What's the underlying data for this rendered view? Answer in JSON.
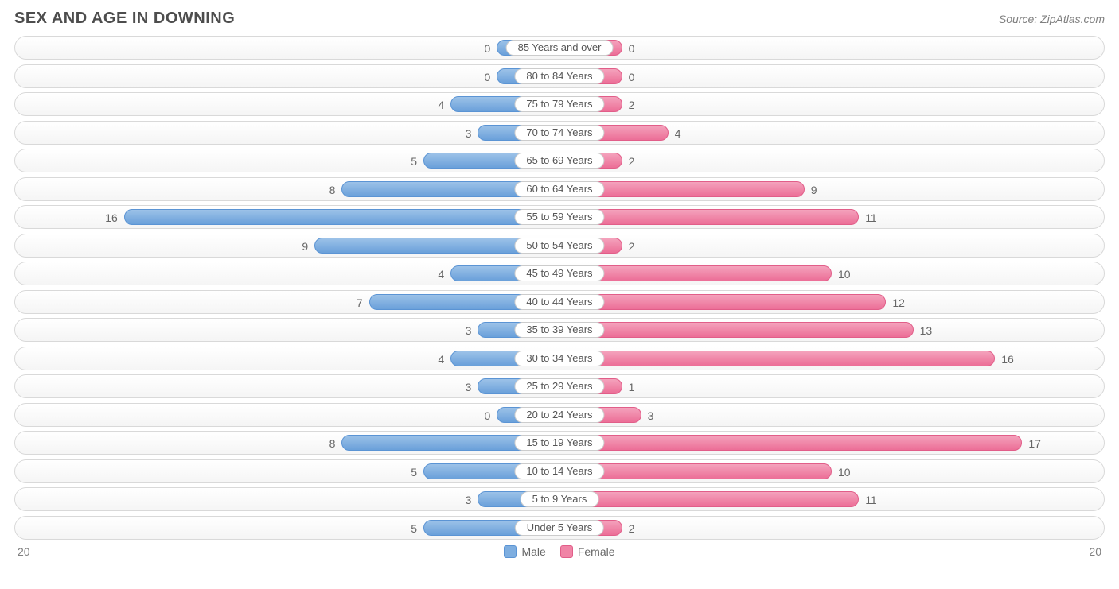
{
  "title": "SEX AND AGE IN DOWNING",
  "source": "Source: ZipAtlas.com",
  "chart": {
    "type": "population-pyramid",
    "axis_max": 20,
    "axis_label_left": "20",
    "axis_label_right": "20",
    "min_bar_units": 2.3,
    "series": {
      "male": {
        "label": "Male",
        "fill": "#7eaee0",
        "border": "#5b94d4",
        "grad_top": "#9cc2e8",
        "grad_bot": "#6aa0da"
      },
      "female": {
        "label": "Female",
        "fill": "#f084a6",
        "border": "#e15e89",
        "grad_top": "#f4a2bc",
        "grad_bot": "#ec6e97"
      }
    },
    "label_color": "#666666",
    "track_border": "#d9d9d9",
    "pill_border": "#cccccc",
    "rows": [
      {
        "category": "85 Years and over",
        "male": 0,
        "female": 0
      },
      {
        "category": "80 to 84 Years",
        "male": 0,
        "female": 0
      },
      {
        "category": "75 to 79 Years",
        "male": 4,
        "female": 2
      },
      {
        "category": "70 to 74 Years",
        "male": 3,
        "female": 4
      },
      {
        "category": "65 to 69 Years",
        "male": 5,
        "female": 2
      },
      {
        "category": "60 to 64 Years",
        "male": 8,
        "female": 9
      },
      {
        "category": "55 to 59 Years",
        "male": 16,
        "female": 11
      },
      {
        "category": "50 to 54 Years",
        "male": 9,
        "female": 2
      },
      {
        "category": "45 to 49 Years",
        "male": 4,
        "female": 10
      },
      {
        "category": "40 to 44 Years",
        "male": 7,
        "female": 12
      },
      {
        "category": "35 to 39 Years",
        "male": 3,
        "female": 13
      },
      {
        "category": "30 to 34 Years",
        "male": 4,
        "female": 16
      },
      {
        "category": "25 to 29 Years",
        "male": 3,
        "female": 1
      },
      {
        "category": "20 to 24 Years",
        "male": 0,
        "female": 3
      },
      {
        "category": "15 to 19 Years",
        "male": 8,
        "female": 17
      },
      {
        "category": "10 to 14 Years",
        "male": 5,
        "female": 10
      },
      {
        "category": "5 to 9 Years",
        "male": 3,
        "female": 11
      },
      {
        "category": "Under 5 Years",
        "male": 5,
        "female": 2
      }
    ]
  }
}
